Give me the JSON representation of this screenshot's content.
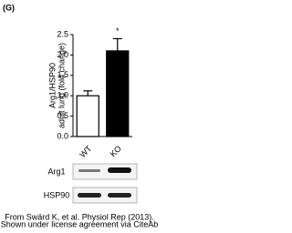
{
  "chart_data": {
    "type": "bar",
    "panel_label": "(G)",
    "ylabel": [
      "Arg1/HSP90",
      "adult lung (fold change)"
    ],
    "categories": [
      "WT",
      "KO"
    ],
    "values": [
      1.0,
      2.1
    ],
    "errors": [
      0.12,
      0.3
    ],
    "colors": [
      "#ffffff",
      "#000000"
    ],
    "annotation": "*",
    "ylim": [
      0,
      2.5
    ],
    "yticks": [
      {
        "value": 0,
        "label": "0.0"
      },
      {
        "value": 0.5,
        "label": "0.5"
      },
      {
        "value": 1,
        "label": "1.0"
      },
      {
        "value": 1.5,
        "label": "1.5"
      },
      {
        "value": 2,
        "label": "2.0"
      },
      {
        "value": 2.5,
        "label": "2.5"
      }
    ],
    "blot_rows": [
      "Arg1",
      "HSP90"
    ],
    "source": [
      "From Swärd K, et al. Physiol Rep (2013).",
      "Shown under license agreement via CiteAb"
    ]
  }
}
